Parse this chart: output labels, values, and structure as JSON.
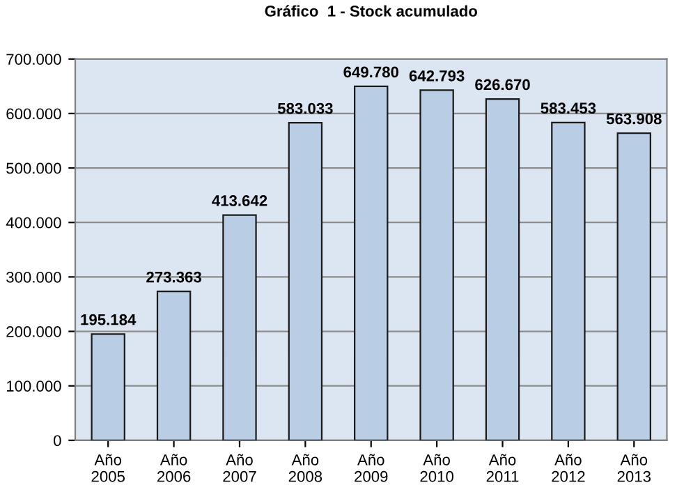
{
  "chart_data": {
    "type": "bar",
    "title": "Gráfico  1 - Stock acumulado",
    "categories": [
      "Año\n2005",
      "Año\n2006",
      "Año\n2007",
      "Año\n2008",
      "Año\n2009",
      "Año\n2010",
      "Año\n2011",
      "Año\n2012",
      "Año\n2013"
    ],
    "values": [
      195184,
      273363,
      413642,
      583033,
      649780,
      642793,
      626670,
      583453,
      563908
    ],
    "value_labels": [
      "195.184",
      "273.363",
      "413.642",
      "583.033",
      "649.780",
      "642.793",
      "626.670",
      "583.453",
      "563.908"
    ],
    "color": "#b9cde5",
    "ylim": [
      0,
      700000
    ],
    "yticks": [
      {
        "value": 0,
        "label": "0"
      },
      {
        "value": 100000,
        "label": "100.000"
      },
      {
        "value": 200000,
        "label": "200.000"
      },
      {
        "value": 300000,
        "label": "300.000"
      },
      {
        "value": 400000,
        "label": "400.000"
      },
      {
        "value": 500000,
        "label": "500.000"
      },
      {
        "value": 600000,
        "label": "600.000"
      },
      {
        "value": 700000,
        "label": "700.000"
      }
    ],
    "grid": "y"
  }
}
